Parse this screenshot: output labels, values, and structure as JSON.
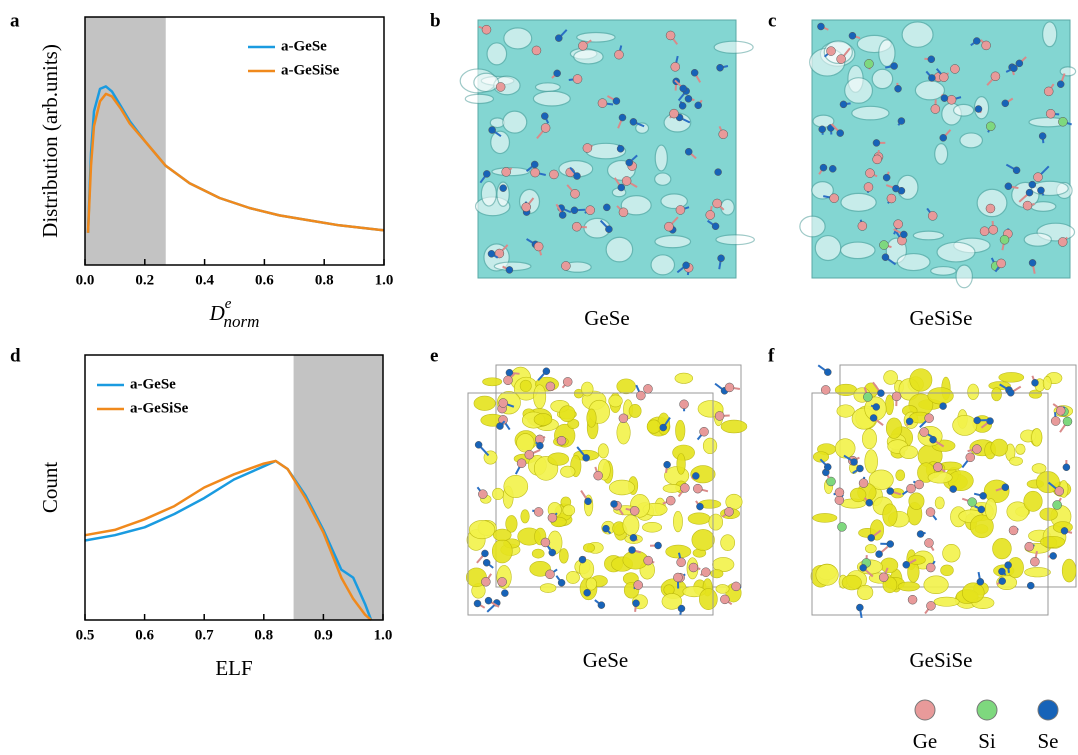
{
  "chart_data": [
    {
      "type": "line",
      "panel_label": "a",
      "xlabel": {
        "base": "D",
        "sup": "e",
        "sub": "norm"
      },
      "ylabel": "Distribution (arb.units)",
      "xlim": [
        0,
        1
      ],
      "ylim": [
        0,
        1
      ],
      "xticks": [
        {
          "value": 0,
          "label": "0.0"
        },
        0.2,
        0.4,
        0.6,
        0.8,
        {
          "value": 1,
          "label": "1.0"
        }
      ],
      "shade": [
        0,
        0.27
      ],
      "legend": "upper right",
      "x": [
        0.01,
        0.02,
        0.03,
        0.05,
        0.07,
        0.09,
        0.12,
        0.15,
        0.2,
        0.27,
        0.35,
        0.45,
        0.55,
        0.65,
        0.75,
        0.85,
        1.0
      ],
      "series": [
        {
          "name": "a-GeSe",
          "color": "#1a9be0",
          "values": [
            0.13,
            0.45,
            0.62,
            0.71,
            0.72,
            0.7,
            0.64,
            0.58,
            0.5,
            0.4,
            0.33,
            0.27,
            0.23,
            0.2,
            0.18,
            0.16,
            0.14
          ]
        },
        {
          "name": "a-GeSiSe",
          "color": "#f0891c",
          "values": [
            0.13,
            0.4,
            0.56,
            0.66,
            0.69,
            0.68,
            0.63,
            0.57,
            0.5,
            0.4,
            0.33,
            0.27,
            0.23,
            0.2,
            0.18,
            0.16,
            0.14
          ]
        }
      ]
    },
    {
      "type": "line",
      "panel_label": "d",
      "xlabel": "ELF",
      "ylabel": "Count",
      "xlim": [
        0.5,
        1
      ],
      "ylim": [
        0,
        1
      ],
      "xticks": [
        0.5,
        0.6,
        0.7,
        0.8,
        0.9,
        {
          "value": 1,
          "label": "1.0"
        }
      ],
      "shade": [
        0.85,
        1
      ],
      "legend": "upper left",
      "x": [
        0.5,
        0.55,
        0.6,
        0.65,
        0.7,
        0.75,
        0.8,
        0.82,
        0.84,
        0.87,
        0.9,
        0.93,
        0.95,
        0.97,
        0.98
      ],
      "series": [
        {
          "name": "a-GeSe",
          "color": "#1a9be0",
          "values": [
            0.3,
            0.32,
            0.35,
            0.4,
            0.46,
            0.53,
            0.58,
            0.6,
            0.57,
            0.47,
            0.34,
            0.19,
            0.16,
            0.06,
            0
          ]
        },
        {
          "name": "a-GeSiSe",
          "color": "#f0891c",
          "values": [
            0.32,
            0.34,
            0.38,
            0.43,
            0.5,
            0.55,
            0.59,
            0.6,
            0.57,
            0.46,
            0.33,
            0.16,
            0.08,
            0.02,
            0
          ]
        }
      ]
    }
  ],
  "images": [
    {
      "label": "b",
      "caption": "GeSe"
    },
    {
      "label": "c",
      "caption": "GeSiSe"
    },
    {
      "label": "e",
      "caption": "GeSe"
    },
    {
      "label": "f",
      "caption": "GeSiSe"
    }
  ],
  "atoms": [
    {
      "name": "Ge",
      "color": "#e89a9a"
    },
    {
      "name": "Si",
      "color": "#7ed87e"
    },
    {
      "name": "Se",
      "color": "#1763b8"
    }
  ]
}
